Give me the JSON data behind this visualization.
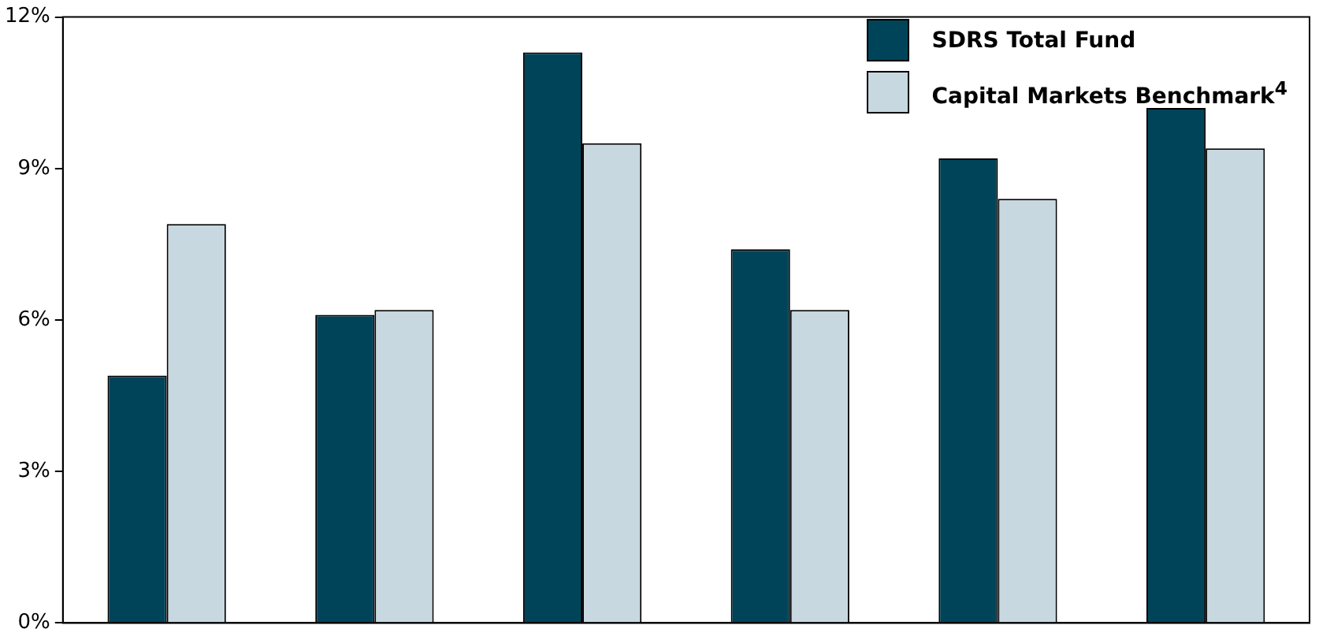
{
  "chart_data": {
    "type": "bar",
    "categories": [
      null,
      null,
      null,
      null,
      null,
      null
    ],
    "series": [
      {
        "name": "SDRS Total Fund",
        "color": "#00445a",
        "values": [
          4.9,
          6.1,
          11.3,
          7.4,
          9.2,
          10.2
        ]
      },
      {
        "name": "Capital Markets Benchmark$^{4}$",
        "color": "#c8d8e0",
        "values": [
          7.9,
          6.2,
          9.5,
          6.2,
          8.4,
          9.4
        ]
      }
    ],
    "ylim": [
      0,
      12
    ],
    "yticks": [
      {
        "value": 0,
        "label": "0%"
      },
      {
        "value": 3,
        "label": "3%"
      },
      {
        "value": 6,
        "label": "6%"
      },
      {
        "value": 9,
        "label": "9%"
      },
      {
        "value": 12,
        "label": "12%"
      }
    ],
    "grid": false,
    "legend": "top right"
  }
}
